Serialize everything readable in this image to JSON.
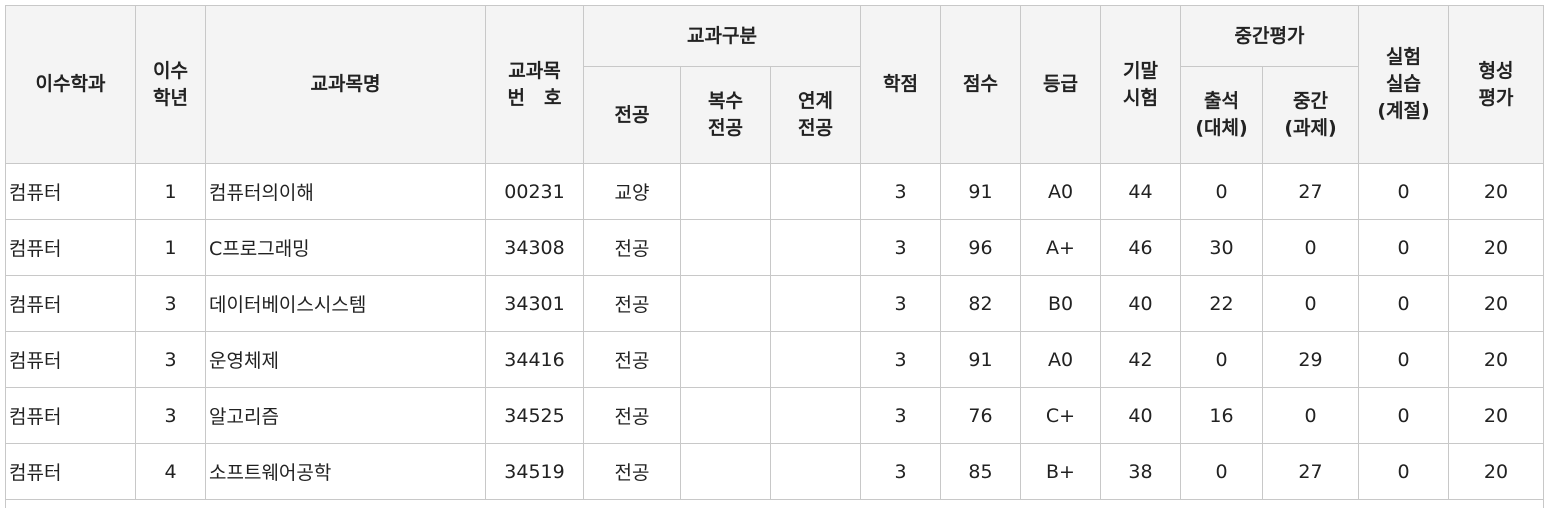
{
  "table": {
    "headers": {
      "dept": "이수학과",
      "year": "이수\n학년",
      "course_name": "교과목명",
      "course_no": "교과목\n번　호",
      "category": "교과구분",
      "category_sub": [
        "전공",
        "복수\n전공",
        "연계\n전공"
      ],
      "credit": "학점",
      "score": "점수",
      "grade": "등급",
      "final": "기말\n시험",
      "midterm_group": "중간평가",
      "midterm_sub": [
        "출석\n(대체)",
        "중간\n(과제)"
      ],
      "lab": "실험\n실습\n(계절)",
      "formative": "형성\n평가"
    },
    "rows": [
      {
        "dept": "컴퓨터",
        "year": "1",
        "name": "컴퓨터의이해",
        "no": "00231",
        "major": "교양",
        "double": "",
        "linked": "",
        "credit": "3",
        "score": "91",
        "grade": "A0",
        "final": "44",
        "attend": "0",
        "mid": "27",
        "lab": "0",
        "formative": "20"
      },
      {
        "dept": "컴퓨터",
        "year": "1",
        "name": "C프로그래밍",
        "no": "34308",
        "major": "전공",
        "double": "",
        "linked": "",
        "credit": "3",
        "score": "96",
        "grade": "A+",
        "final": "46",
        "attend": "30",
        "mid": "0",
        "lab": "0",
        "formative": "20"
      },
      {
        "dept": "컴퓨터",
        "year": "3",
        "name": "데이터베이스시스템",
        "no": "34301",
        "major": "전공",
        "double": "",
        "linked": "",
        "credit": "3",
        "score": "82",
        "grade": "B0",
        "final": "40",
        "attend": "22",
        "mid": "0",
        "lab": "0",
        "formative": "20"
      },
      {
        "dept": "컴퓨터",
        "year": "3",
        "name": "운영체제",
        "no": "34416",
        "major": "전공",
        "double": "",
        "linked": "",
        "credit": "3",
        "score": "91",
        "grade": "A0",
        "final": "42",
        "attend": "0",
        "mid": "29",
        "lab": "0",
        "formative": "20"
      },
      {
        "dept": "컴퓨터",
        "year": "3",
        "name": "알고리즘",
        "no": "34525",
        "major": "전공",
        "double": "",
        "linked": "",
        "credit": "3",
        "score": "76",
        "grade": "C+",
        "final": "40",
        "attend": "16",
        "mid": "0",
        "lab": "0",
        "formative": "20"
      },
      {
        "dept": "컴퓨터",
        "year": "4",
        "name": "소프트웨어공학",
        "no": "34519",
        "major": "전공",
        "double": "",
        "linked": "",
        "credit": "3",
        "score": "85",
        "grade": "B+",
        "final": "38",
        "attend": "0",
        "mid": "27",
        "lab": "0",
        "formative": "20"
      }
    ]
  }
}
